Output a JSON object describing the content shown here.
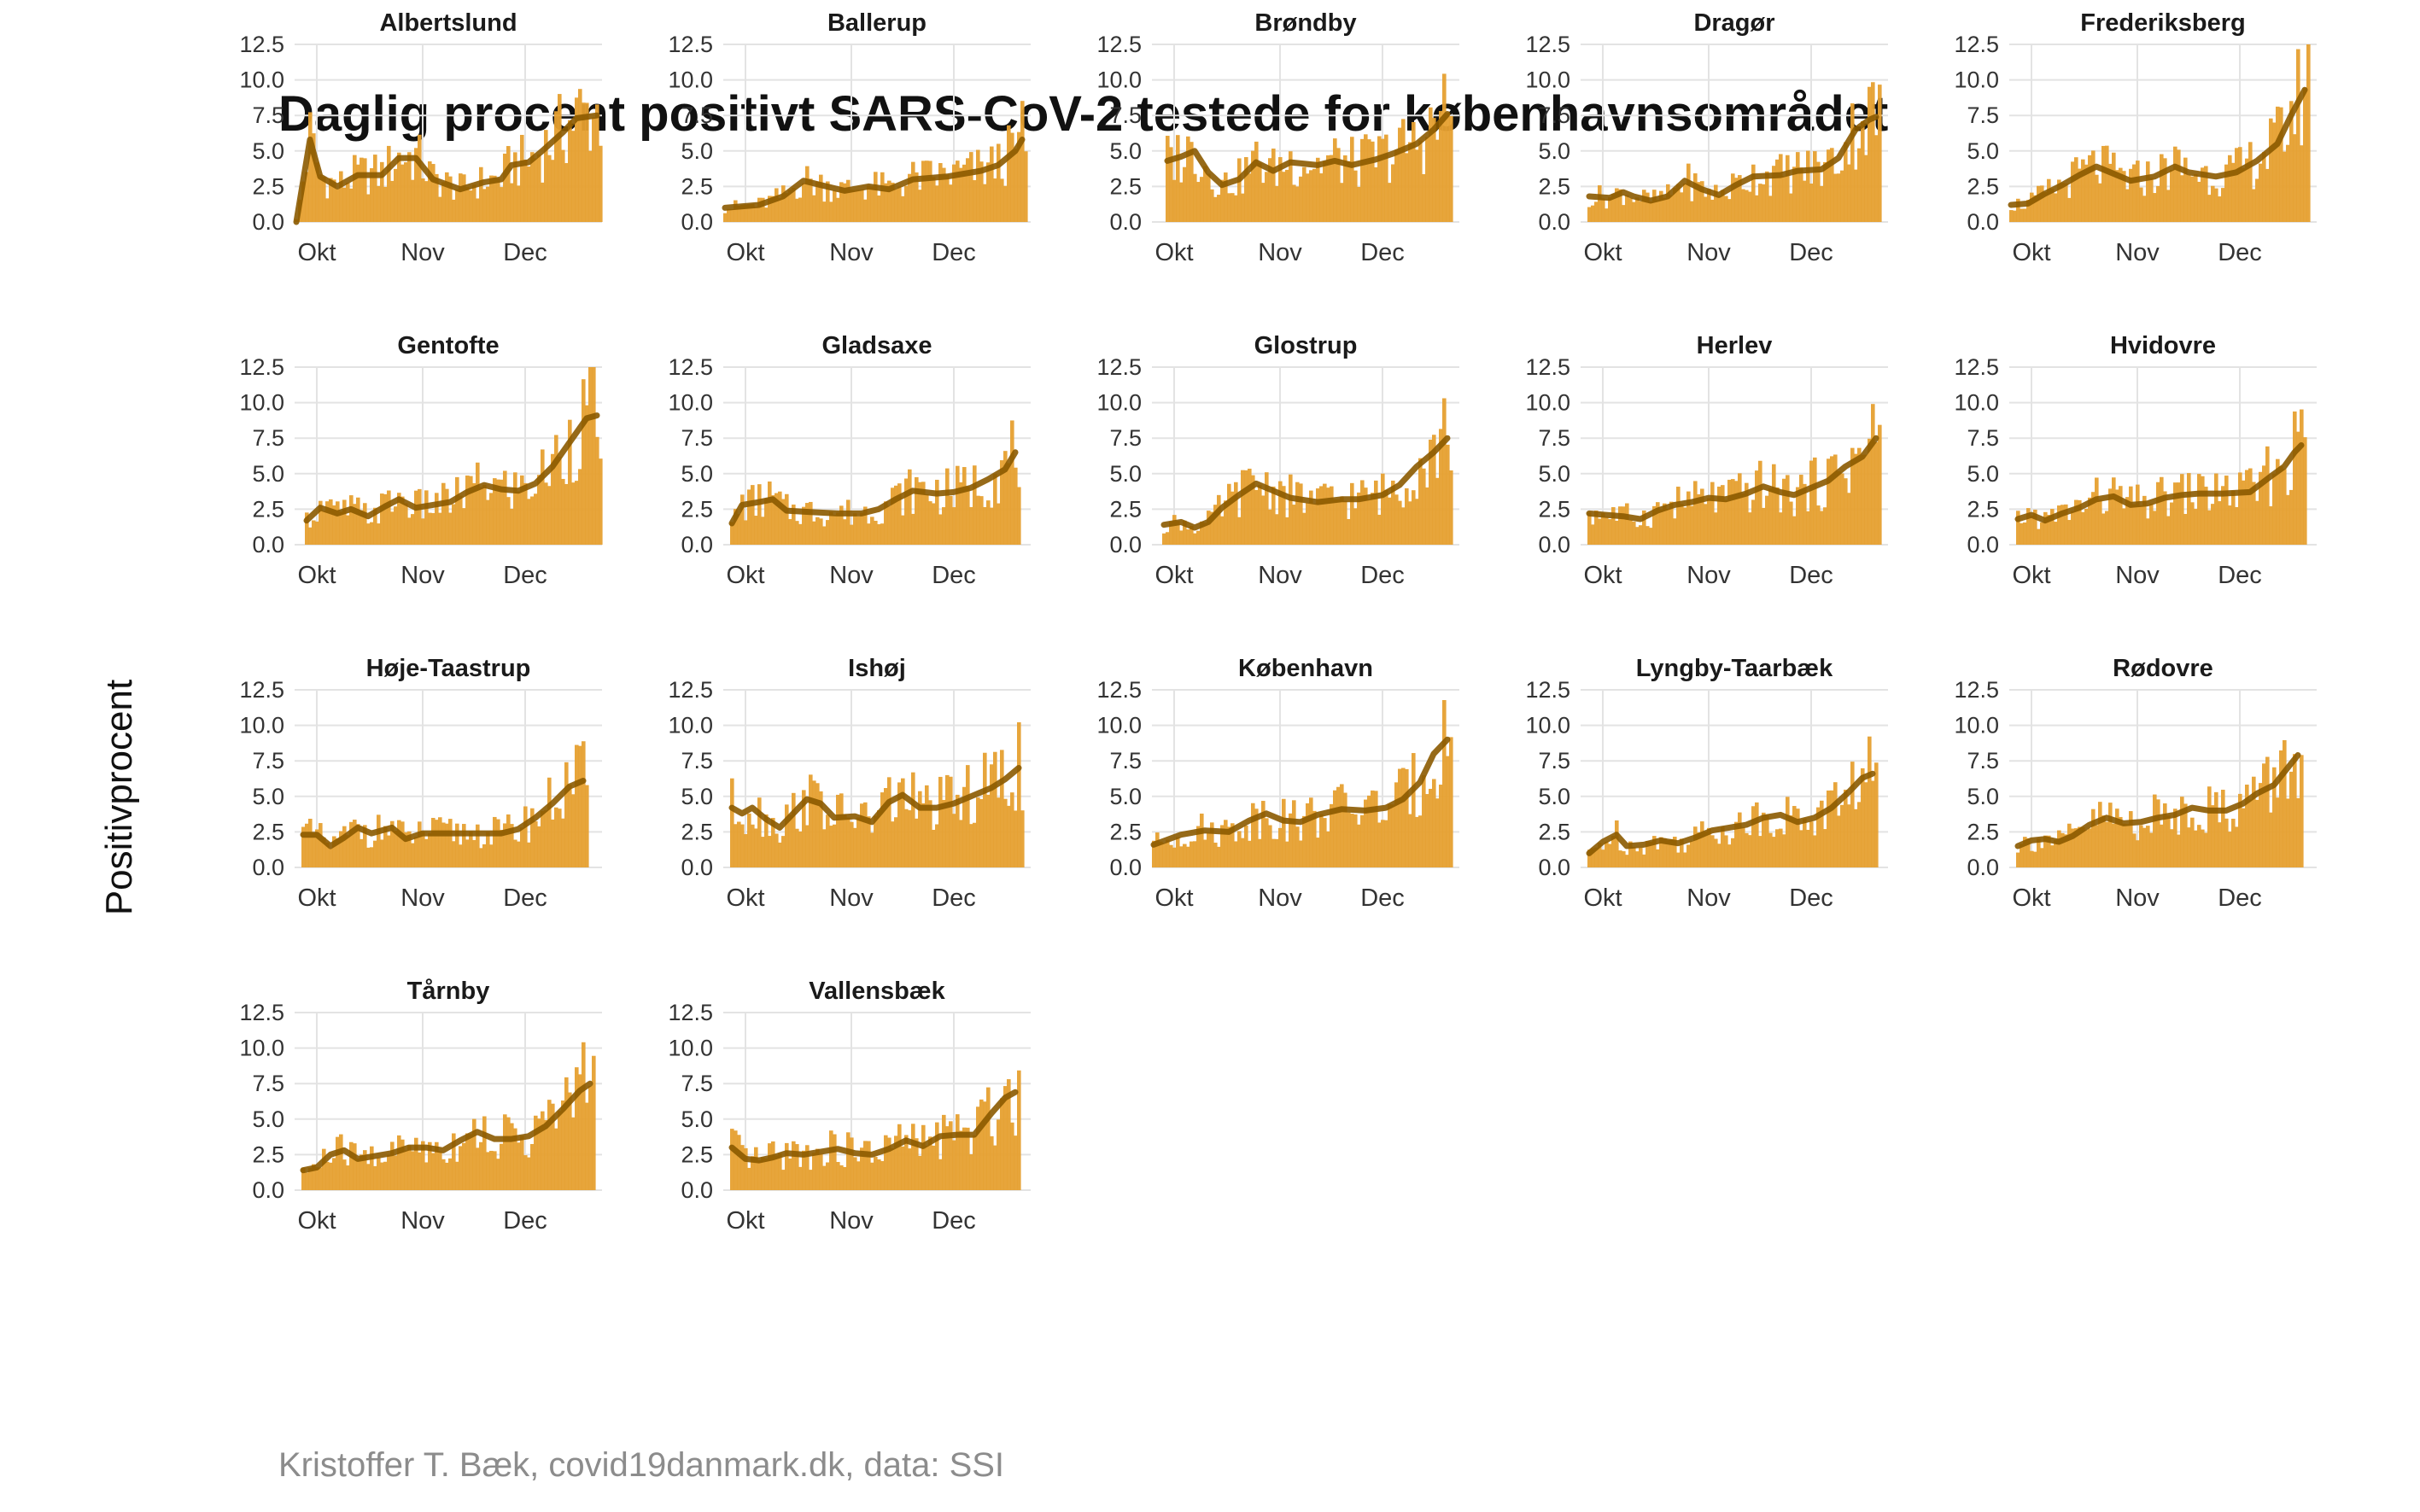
{
  "title": "Daglig procent positivt SARS-CoV-2 testede for københavnsområdet",
  "y_label": "Positivprocent",
  "caption": "Kristoffer T. Bæk, covid19danmark.dk, data: SSI",
  "colors": {
    "bar": "#E6A030",
    "trend": "#8B5A00",
    "grid": "#E3E3E3",
    "text": "#333333"
  },
  "chart_data": {
    "type": "bar",
    "overlay": "smoothed line",
    "ylim": [
      0,
      12.5
    ],
    "y_ticks": [
      "0.0",
      "2.5",
      "5.0",
      "7.5",
      "10.0",
      "12.5"
    ],
    "x_ticks": [
      "Okt",
      "Nov",
      "Dec"
    ],
    "x_tick_days": [
      6,
      37,
      67
    ],
    "days": 90,
    "panels": [
      {
        "name": "Albertslund",
        "trend": [
          [
            0,
            0
          ],
          [
            4,
            5.8
          ],
          [
            7,
            3.2
          ],
          [
            12,
            2.5
          ],
          [
            18,
            3.3
          ],
          [
            25,
            3.3
          ],
          [
            30,
            4.5
          ],
          [
            35,
            4.5
          ],
          [
            40,
            3.0
          ],
          [
            48,
            2.3
          ],
          [
            55,
            2.8
          ],
          [
            60,
            3.0
          ],
          [
            63,
            4.0
          ],
          [
            68,
            4.2
          ],
          [
            72,
            5.0
          ],
          [
            78,
            6.3
          ],
          [
            82,
            7.3
          ],
          [
            88,
            7.5
          ]
        ]
      },
      {
        "name": "Ballerup",
        "trend": [
          [
            0,
            1.0
          ],
          [
            10,
            1.2
          ],
          [
            17,
            1.8
          ],
          [
            23,
            2.9
          ],
          [
            28,
            2.6
          ],
          [
            35,
            2.2
          ],
          [
            42,
            2.5
          ],
          [
            48,
            2.3
          ],
          [
            55,
            3.0
          ],
          [
            65,
            3.2
          ],
          [
            75,
            3.6
          ],
          [
            80,
            4.0
          ],
          [
            85,
            5.0
          ],
          [
            87,
            5.8
          ]
        ]
      },
      {
        "name": "Brøndby",
        "trend": [
          [
            4,
            4.3
          ],
          [
            8,
            4.6
          ],
          [
            12,
            5.0
          ],
          [
            16,
            3.5
          ],
          [
            20,
            2.6
          ],
          [
            25,
            3.0
          ],
          [
            30,
            4.2
          ],
          [
            35,
            3.6
          ],
          [
            40,
            4.2
          ],
          [
            48,
            4.0
          ],
          [
            53,
            4.3
          ],
          [
            58,
            4.0
          ],
          [
            65,
            4.4
          ],
          [
            70,
            4.8
          ],
          [
            77,
            5.5
          ],
          [
            82,
            6.5
          ],
          [
            86,
            7.6
          ]
        ]
      },
      {
        "name": "Dragør",
        "trend": [
          [
            2,
            1.8
          ],
          [
            8,
            1.7
          ],
          [
            12,
            2.1
          ],
          [
            15,
            1.8
          ],
          [
            20,
            1.5
          ],
          [
            25,
            1.8
          ],
          [
            30,
            2.9
          ],
          [
            35,
            2.3
          ],
          [
            40,
            1.9
          ],
          [
            45,
            2.6
          ],
          [
            50,
            3.2
          ],
          [
            58,
            3.3
          ],
          [
            63,
            3.6
          ],
          [
            70,
            3.7
          ],
          [
            75,
            4.5
          ],
          [
            80,
            6.5
          ],
          [
            84,
            7.2
          ],
          [
            86,
            7.4
          ]
        ]
      },
      {
        "name": "Frederiksberg",
        "trend": [
          [
            0,
            1.2
          ],
          [
            5,
            1.3
          ],
          [
            10,
            2.0
          ],
          [
            15,
            2.6
          ],
          [
            20,
            3.3
          ],
          [
            25,
            3.9
          ],
          [
            30,
            3.4
          ],
          [
            35,
            2.9
          ],
          [
            42,
            3.2
          ],
          [
            48,
            3.9
          ],
          [
            52,
            3.5
          ],
          [
            60,
            3.2
          ],
          [
            66,
            3.5
          ],
          [
            72,
            4.3
          ],
          [
            78,
            5.5
          ],
          [
            82,
            7.5
          ],
          [
            86,
            9.3
          ]
        ]
      },
      {
        "name": "Gentofte",
        "trend": [
          [
            3,
            1.7
          ],
          [
            7,
            2.6
          ],
          [
            12,
            2.2
          ],
          [
            16,
            2.5
          ],
          [
            21,
            2.0
          ],
          [
            26,
            2.7
          ],
          [
            30,
            3.2
          ],
          [
            35,
            2.6
          ],
          [
            40,
            2.8
          ],
          [
            45,
            3.0
          ],
          [
            50,
            3.7
          ],
          [
            55,
            4.2
          ],
          [
            60,
            3.9
          ],
          [
            65,
            3.8
          ],
          [
            70,
            4.3
          ],
          [
            75,
            5.5
          ],
          [
            80,
            7.2
          ],
          [
            85,
            8.9
          ],
          [
            88,
            9.1
          ]
        ]
      },
      {
        "name": "Gladsaxe",
        "trend": [
          [
            2,
            1.5
          ],
          [
            5,
            2.8
          ],
          [
            10,
            3.0
          ],
          [
            14,
            3.2
          ],
          [
            18,
            2.4
          ],
          [
            25,
            2.3
          ],
          [
            33,
            2.2
          ],
          [
            40,
            2.2
          ],
          [
            45,
            2.5
          ],
          [
            50,
            3.2
          ],
          [
            55,
            3.8
          ],
          [
            62,
            3.6
          ],
          [
            67,
            3.7
          ],
          [
            72,
            4.0
          ],
          [
            77,
            4.6
          ],
          [
            82,
            5.3
          ],
          [
            85,
            6.5
          ]
        ]
      },
      {
        "name": "Glostrup",
        "trend": [
          [
            3,
            1.4
          ],
          [
            8,
            1.6
          ],
          [
            12,
            1.2
          ],
          [
            16,
            1.6
          ],
          [
            20,
            2.6
          ],
          [
            25,
            3.5
          ],
          [
            30,
            4.3
          ],
          [
            35,
            3.8
          ],
          [
            40,
            3.3
          ],
          [
            48,
            3.0
          ],
          [
            55,
            3.2
          ],
          [
            60,
            3.2
          ],
          [
            67,
            3.5
          ],
          [
            72,
            4.2
          ],
          [
            77,
            5.5
          ],
          [
            82,
            6.5
          ],
          [
            86,
            7.5
          ]
        ]
      },
      {
        "name": "Herlev",
        "trend": [
          [
            2,
            2.2
          ],
          [
            7,
            2.1
          ],
          [
            12,
            2.0
          ],
          [
            17,
            1.8
          ],
          [
            22,
            2.4
          ],
          [
            27,
            2.8
          ],
          [
            32,
            3.0
          ],
          [
            37,
            3.3
          ],
          [
            42,
            3.2
          ],
          [
            48,
            3.6
          ],
          [
            53,
            4.1
          ],
          [
            58,
            3.7
          ],
          [
            62,
            3.5
          ],
          [
            67,
            4.0
          ],
          [
            72,
            4.5
          ],
          [
            77,
            5.5
          ],
          [
            82,
            6.2
          ],
          [
            86,
            7.5
          ]
        ]
      },
      {
        "name": "Hvidovre",
        "trend": [
          [
            2,
            1.8
          ],
          [
            6,
            2.1
          ],
          [
            10,
            1.7
          ],
          [
            15,
            2.2
          ],
          [
            20,
            2.6
          ],
          [
            25,
            3.2
          ],
          [
            30,
            3.4
          ],
          [
            35,
            2.8
          ],
          [
            40,
            2.9
          ],
          [
            45,
            3.3
          ],
          [
            50,
            3.5
          ],
          [
            55,
            3.6
          ],
          [
            62,
            3.6
          ],
          [
            70,
            3.7
          ],
          [
            76,
            4.8
          ],
          [
            80,
            5.5
          ],
          [
            83,
            6.5
          ],
          [
            85,
            7.0
          ]
        ]
      },
      {
        "name": "Høje-Taastrup",
        "trend": [
          [
            2,
            2.3
          ],
          [
            6,
            2.3
          ],
          [
            10,
            1.5
          ],
          [
            14,
            2.1
          ],
          [
            18,
            2.8
          ],
          [
            22,
            2.4
          ],
          [
            28,
            2.8
          ],
          [
            32,
            2.0
          ],
          [
            37,
            2.4
          ],
          [
            42,
            2.4
          ],
          [
            48,
            2.4
          ],
          [
            55,
            2.4
          ],
          [
            60,
            2.4
          ],
          [
            65,
            2.7
          ],
          [
            70,
            3.5
          ],
          [
            75,
            4.5
          ],
          [
            80,
            5.7
          ],
          [
            84,
            6.1
          ]
        ]
      },
      {
        "name": "Ishøj",
        "trend": [
          [
            2,
            4.2
          ],
          [
            5,
            3.8
          ],
          [
            8,
            4.2
          ],
          [
            12,
            3.4
          ],
          [
            16,
            2.8
          ],
          [
            20,
            3.8
          ],
          [
            24,
            4.8
          ],
          [
            28,
            4.5
          ],
          [
            32,
            3.5
          ],
          [
            38,
            3.6
          ],
          [
            43,
            3.2
          ],
          [
            48,
            4.6
          ],
          [
            52,
            5.1
          ],
          [
            57,
            4.2
          ],
          [
            62,
            4.2
          ],
          [
            67,
            4.5
          ],
          [
            72,
            5.0
          ],
          [
            78,
            5.6
          ],
          [
            82,
            6.2
          ],
          [
            86,
            7.0
          ]
        ]
      },
      {
        "name": "København",
        "trend": [
          [
            0,
            1.6
          ],
          [
            8,
            2.3
          ],
          [
            15,
            2.6
          ],
          [
            22,
            2.5
          ],
          [
            28,
            3.3
          ],
          [
            33,
            3.8
          ],
          [
            38,
            3.3
          ],
          [
            43,
            3.2
          ],
          [
            48,
            3.7
          ],
          [
            55,
            4.1
          ],
          [
            62,
            4.0
          ],
          [
            68,
            4.2
          ],
          [
            73,
            4.8
          ],
          [
            78,
            6.0
          ],
          [
            82,
            8.0
          ],
          [
            86,
            9.0
          ]
        ]
      },
      {
        "name": "Lyngby-Taarbæk",
        "trend": [
          [
            2,
            1.0
          ],
          [
            6,
            1.8
          ],
          [
            10,
            2.3
          ],
          [
            13,
            1.5
          ],
          [
            18,
            1.6
          ],
          [
            23,
            1.9
          ],
          [
            28,
            1.7
          ],
          [
            33,
            2.1
          ],
          [
            38,
            2.6
          ],
          [
            43,
            2.8
          ],
          [
            48,
            3.0
          ],
          [
            53,
            3.5
          ],
          [
            58,
            3.7
          ],
          [
            63,
            3.2
          ],
          [
            68,
            3.5
          ],
          [
            73,
            4.2
          ],
          [
            78,
            5.3
          ],
          [
            82,
            6.3
          ],
          [
            85,
            6.6
          ]
        ]
      },
      {
        "name": "Rødovre",
        "trend": [
          [
            2,
            1.5
          ],
          [
            6,
            1.9
          ],
          [
            10,
            2.0
          ],
          [
            14,
            1.8
          ],
          [
            18,
            2.2
          ],
          [
            23,
            3.0
          ],
          [
            28,
            3.5
          ],
          [
            33,
            3.1
          ],
          [
            38,
            3.2
          ],
          [
            43,
            3.5
          ],
          [
            48,
            3.7
          ],
          [
            53,
            4.2
          ],
          [
            58,
            4.0
          ],
          [
            63,
            4.0
          ],
          [
            68,
            4.5
          ],
          [
            72,
            5.2
          ],
          [
            77,
            5.8
          ],
          [
            81,
            7.0
          ],
          [
            84,
            7.9
          ]
        ]
      },
      {
        "name": "Tårnby",
        "trend": [
          [
            2,
            1.4
          ],
          [
            6,
            1.6
          ],
          [
            10,
            2.5
          ],
          [
            14,
            2.8
          ],
          [
            18,
            2.2
          ],
          [
            23,
            2.4
          ],
          [
            28,
            2.6
          ],
          [
            33,
            3.0
          ],
          [
            38,
            3.0
          ],
          [
            43,
            2.8
          ],
          [
            48,
            3.5
          ],
          [
            53,
            4.1
          ],
          [
            58,
            3.6
          ],
          [
            63,
            3.6
          ],
          [
            68,
            3.8
          ],
          [
            73,
            4.5
          ],
          [
            78,
            5.7
          ],
          [
            83,
            7.0
          ],
          [
            86,
            7.5
          ]
        ]
      },
      {
        "name": "Vallensbæk",
        "trend": [
          [
            2,
            3.0
          ],
          [
            6,
            2.2
          ],
          [
            10,
            2.1
          ],
          [
            14,
            2.3
          ],
          [
            18,
            2.6
          ],
          [
            23,
            2.5
          ],
          [
            28,
            2.7
          ],
          [
            33,
            2.9
          ],
          [
            38,
            2.6
          ],
          [
            43,
            2.5
          ],
          [
            48,
            2.9
          ],
          [
            53,
            3.5
          ],
          [
            58,
            3.1
          ],
          [
            63,
            3.8
          ],
          [
            68,
            3.9
          ],
          [
            73,
            3.9
          ],
          [
            78,
            5.4
          ],
          [
            82,
            6.5
          ],
          [
            85,
            6.9
          ]
        ]
      }
    ]
  }
}
